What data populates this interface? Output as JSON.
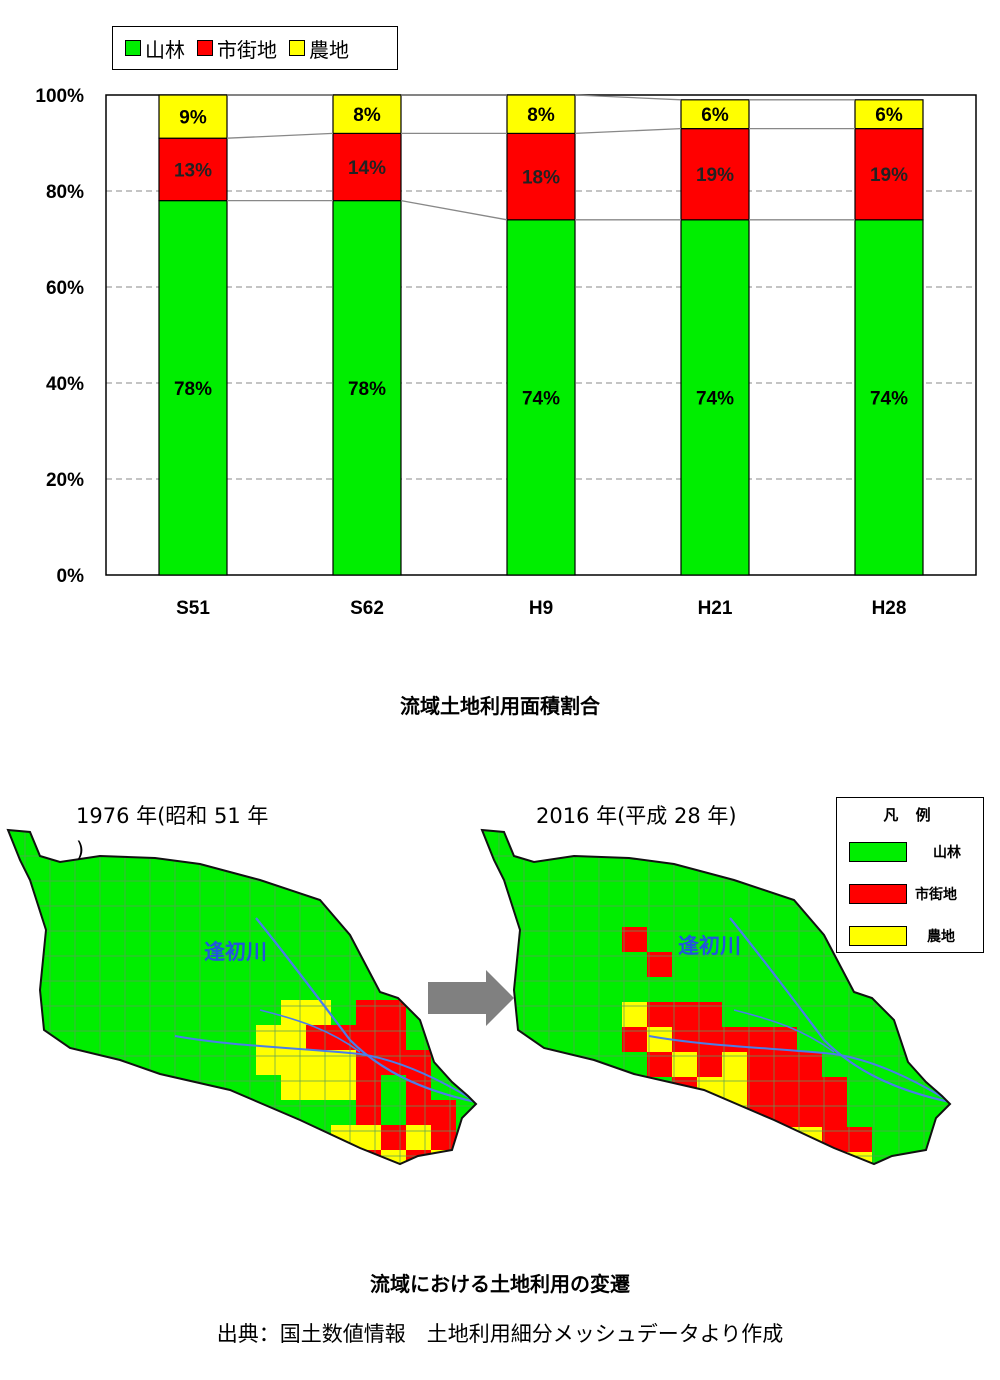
{
  "legend": {
    "items": [
      {
        "label": "山林",
        "color": "#00ee00"
      },
      {
        "label": "市街地",
        "color": "#ff0000"
      },
      {
        "label": "農地",
        "color": "#ffff00"
      }
    ]
  },
  "chart_data": {
    "type": "bar",
    "stacked": true,
    "categories": [
      "S51",
      "S62",
      "H9",
      "H21",
      "H28"
    ],
    "series": [
      {
        "name": "山林",
        "color": "#00ee00",
        "values": [
          78,
          78,
          74,
          74,
          74
        ],
        "labels": [
          "78%",
          "78%",
          "74%",
          "74%",
          "74%"
        ]
      },
      {
        "name": "市街地",
        "color": "#ff0000",
        "values": [
          13,
          14,
          18,
          19,
          19
        ],
        "labels": [
          "13%",
          "14%",
          "18%",
          "19%",
          "19%"
        ]
      },
      {
        "name": "農地",
        "color": "#ffff00",
        "values": [
          9,
          8,
          8,
          6,
          6
        ],
        "labels": [
          "9%",
          "8%",
          "8%",
          "6%",
          "6%"
        ]
      }
    ],
    "ylim": [
      0,
      100
    ],
    "yticks": [
      "0%",
      "20%",
      "40%",
      "60%",
      "80%",
      "100%"
    ],
    "grid": "dashed horizontal",
    "legend_position": "top-left"
  },
  "chart_caption": "流域土地利用面積割合",
  "maps": {
    "left_title": "1976 年(昭和 51 年",
    "left_title_tail": ")",
    "right_title": "2016 年(平成 28 年)",
    "river_name": "逢初川",
    "legend": {
      "title": "凡 例",
      "items": [
        {
          "label": "山林",
          "color": "#00ee00"
        },
        {
          "label": "市街地",
          "color": "#ff0000"
        },
        {
          "label": "農地",
          "color": "#ffff00"
        }
      ]
    }
  },
  "maps_caption": "流域における土地利用の変遷",
  "source_note": "出典：国土数値情報　土地利用細分メッシュデータより作成"
}
